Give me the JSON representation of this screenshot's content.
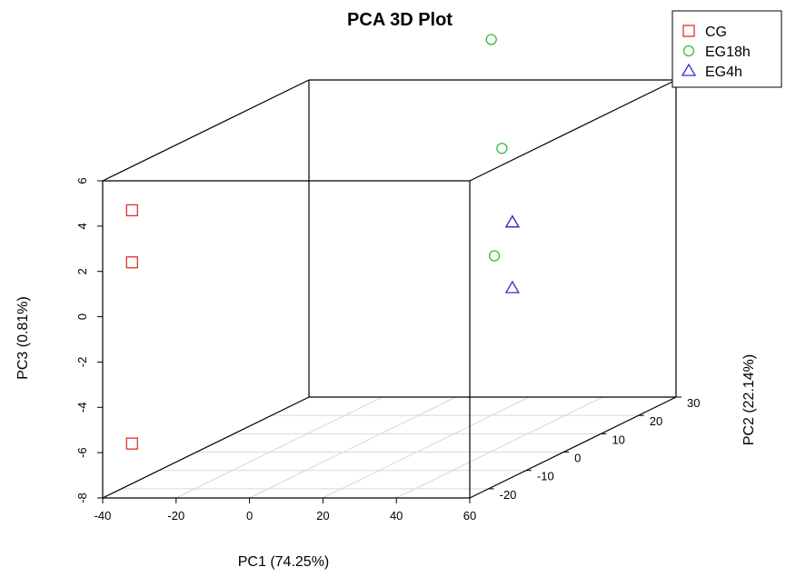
{
  "chart_data": {
    "type": "scatter",
    "title": "PCA 3D Plot",
    "xlabel": "PC1 (74.25%)",
    "ylabel": "PC2 (22.14%)",
    "zlabel": "PC3 (0.81%)",
    "xlim": [
      -40,
      60
    ],
    "ylim": [
      -25,
      30
    ],
    "zlim": [
      -8,
      6
    ],
    "x_ticks": [
      "-40",
      "-20",
      "0",
      "20",
      "40",
      "60"
    ],
    "y_ticks": [
      "-20",
      "-10",
      "0",
      "10",
      "20",
      "30"
    ],
    "z_ticks": [
      "-8",
      "-6",
      "-4",
      "-2",
      "0",
      "2",
      "4",
      "6"
    ],
    "legend_position": "top-right",
    "series": [
      {
        "name": "CG",
        "marker": "square",
        "color": "#e03030",
        "points": [
          {
            "x": -32,
            "y": -25,
            "z": 4.7
          },
          {
            "x": -32,
            "y": -25,
            "z": 2.4
          },
          {
            "x": -32,
            "y": -25,
            "z": -5.6
          }
        ]
      },
      {
        "name": "EG18h",
        "marker": "circle",
        "color": "#30c030",
        "points": [
          {
            "x": 25,
            "y": 15,
            "z": 9.0
          },
          {
            "x": 33,
            "y": 10,
            "z": 4.6
          },
          {
            "x": 34,
            "y": 7,
            "z": 0.1
          }
        ]
      },
      {
        "name": "EG4h",
        "marker": "triangle",
        "color": "#3030d0",
        "points": [
          {
            "x": 43,
            "y": 3,
            "z": 1.9
          },
          {
            "x": 43,
            "y": 3,
            "z": 1.9
          },
          {
            "x": 43,
            "y": 3,
            "z": -1.0
          }
        ]
      }
    ]
  }
}
